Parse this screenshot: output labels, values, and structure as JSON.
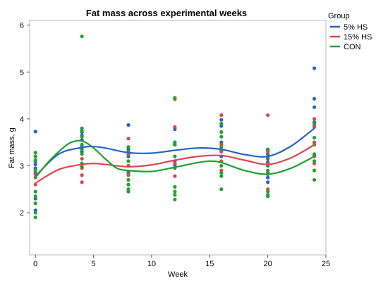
{
  "chart_data": {
    "type": "scatter",
    "title": "Fat mass across experimental weeks",
    "xlabel": "Week",
    "ylabel": "Fat mass, g",
    "xlim": [
      -0.5,
      25
    ],
    "ylim": [
      1.1,
      6.1
    ],
    "x_ticks": [
      0,
      5,
      10,
      15,
      20,
      25
    ],
    "y_ticks": [
      2,
      3,
      4,
      5,
      6
    ],
    "grid": false,
    "legend": {
      "title": "Group",
      "position": "right"
    },
    "series": [
      {
        "name": "5% HS",
        "color": "#2563c7",
        "points": [
          [
            0,
            3.73
          ],
          [
            0,
            3.1
          ],
          [
            0,
            3.03
          ],
          [
            0,
            2.95
          ],
          [
            0,
            2.85
          ],
          [
            0,
            2.3
          ],
          [
            0,
            2.05
          ],
          [
            4,
            3.72
          ],
          [
            4,
            3.65
          ],
          [
            4,
            3.55
          ],
          [
            4,
            3.4
          ],
          [
            4,
            3.3
          ],
          [
            8,
            3.87
          ],
          [
            8,
            3.35
          ],
          [
            8,
            3.2
          ],
          [
            8,
            3.0
          ],
          [
            8,
            2.85
          ],
          [
            12,
            3.78
          ],
          [
            12,
            3.5
          ],
          [
            12,
            3.45
          ],
          [
            12,
            3.1
          ],
          [
            12,
            3.02
          ],
          [
            16,
            3.98
          ],
          [
            16,
            3.85
          ],
          [
            16,
            3.5
          ],
          [
            16,
            3.33
          ],
          [
            16,
            3.2
          ],
          [
            20,
            3.33
          ],
          [
            20,
            3.25
          ],
          [
            20,
            3.15
          ],
          [
            20,
            3.08
          ],
          [
            20,
            2.75
          ],
          [
            20,
            2.65
          ],
          [
            24,
            5.08
          ],
          [
            24,
            4.43
          ],
          [
            24,
            4.25
          ],
          [
            24,
            3.93
          ],
          [
            24,
            3.85
          ],
          [
            24,
            3.5
          ],
          [
            24,
            3.22
          ]
        ],
        "smoother": [
          [
            0,
            2.78
          ],
          [
            2,
            3.25
          ],
          [
            4,
            3.39
          ],
          [
            5,
            3.41
          ],
          [
            6,
            3.38
          ],
          [
            8,
            3.28
          ],
          [
            10,
            3.27
          ],
          [
            12,
            3.33
          ],
          [
            14,
            3.38
          ],
          [
            16,
            3.35
          ],
          [
            18,
            3.24
          ],
          [
            20,
            3.2
          ],
          [
            22,
            3.42
          ],
          [
            24,
            3.8
          ]
        ]
      },
      {
        "name": "15% HS",
        "color": "#e0454d",
        "points": [
          [
            0,
            2.82
          ],
          [
            0,
            2.75
          ],
          [
            0,
            2.6
          ],
          [
            4,
            3.15
          ],
          [
            4,
            2.95
          ],
          [
            4,
            2.8
          ],
          [
            4,
            2.65
          ],
          [
            8,
            3.58
          ],
          [
            8,
            3.4
          ],
          [
            8,
            3.25
          ],
          [
            8,
            3.0
          ],
          [
            8,
            2.8
          ],
          [
            12,
            4.42
          ],
          [
            12,
            3.83
          ],
          [
            12,
            3.45
          ],
          [
            12,
            3.05
          ],
          [
            12,
            2.78
          ],
          [
            16,
            4.08
          ],
          [
            16,
            3.45
          ],
          [
            16,
            3.3
          ],
          [
            16,
            3.1
          ],
          [
            16,
            2.9
          ],
          [
            20,
            4.08
          ],
          [
            20,
            3.3
          ],
          [
            20,
            3.05
          ],
          [
            20,
            2.85
          ],
          [
            20,
            2.5
          ],
          [
            24,
            4.0
          ],
          [
            24,
            3.83
          ],
          [
            24,
            3.5
          ],
          [
            24,
            3.2
          ],
          [
            24,
            3.05
          ]
        ],
        "smoother": [
          [
            0,
            2.63
          ],
          [
            2,
            2.92
          ],
          [
            4,
            3.03
          ],
          [
            5,
            3.05
          ],
          [
            6,
            3.03
          ],
          [
            8,
            2.98
          ],
          [
            10,
            3.02
          ],
          [
            12,
            3.12
          ],
          [
            14,
            3.2
          ],
          [
            16,
            3.22
          ],
          [
            18,
            3.12
          ],
          [
            20,
            3.03
          ],
          [
            22,
            3.17
          ],
          [
            24,
            3.45
          ]
        ]
      },
      {
        "name": "CON",
        "color": "#23a12f",
        "points": [
          [
            0,
            3.28
          ],
          [
            0,
            3.2
          ],
          [
            0,
            3.12
          ],
          [
            0,
            2.9
          ],
          [
            0,
            2.45
          ],
          [
            0,
            2.35
          ],
          [
            0,
            2.2
          ],
          [
            0,
            2.0
          ],
          [
            0,
            1.9
          ],
          [
            4,
            5.76
          ],
          [
            4,
            3.8
          ],
          [
            4,
            3.75
          ],
          [
            4,
            3.62
          ],
          [
            4,
            3.45
          ],
          [
            4,
            3.35
          ],
          [
            4,
            3.25
          ],
          [
            4,
            3.05
          ],
          [
            4,
            2.98
          ],
          [
            8,
            3.4
          ],
          [
            8,
            3.3
          ],
          [
            8,
            3.1
          ],
          [
            8,
            2.88
          ],
          [
            8,
            2.7
          ],
          [
            8,
            2.6
          ],
          [
            8,
            2.5
          ],
          [
            8,
            2.45
          ],
          [
            12,
            4.45
          ],
          [
            12,
            3.5
          ],
          [
            12,
            3.45
          ],
          [
            12,
            3.2
          ],
          [
            12,
            2.95
          ],
          [
            12,
            2.55
          ],
          [
            12,
            2.45
          ],
          [
            12,
            2.38
          ],
          [
            12,
            2.28
          ],
          [
            16,
            3.9
          ],
          [
            16,
            3.72
          ],
          [
            16,
            3.62
          ],
          [
            16,
            3.4
          ],
          [
            16,
            3.0
          ],
          [
            16,
            2.85
          ],
          [
            16,
            2.78
          ],
          [
            16,
            2.5
          ],
          [
            20,
            3.35
          ],
          [
            20,
            3.18
          ],
          [
            20,
            3.0
          ],
          [
            20,
            2.9
          ],
          [
            20,
            2.82
          ],
          [
            20,
            2.45
          ],
          [
            20,
            2.38
          ],
          [
            20,
            2.35
          ],
          [
            24,
            3.9
          ],
          [
            24,
            3.6
          ],
          [
            24,
            3.45
          ],
          [
            24,
            3.25
          ],
          [
            24,
            3.1
          ],
          [
            24,
            2.9
          ],
          [
            24,
            2.7
          ]
        ],
        "smoother": [
          [
            0,
            2.75
          ],
          [
            1,
            3.05
          ],
          [
            2,
            3.3
          ],
          [
            3,
            3.49
          ],
          [
            4,
            3.53
          ],
          [
            5,
            3.38
          ],
          [
            6,
            3.15
          ],
          [
            7,
            2.95
          ],
          [
            8,
            2.9
          ],
          [
            10,
            2.88
          ],
          [
            12,
            2.97
          ],
          [
            14,
            3.07
          ],
          [
            15,
            3.1
          ],
          [
            16,
            3.07
          ],
          [
            18,
            2.9
          ],
          [
            20,
            2.82
          ],
          [
            22,
            2.95
          ],
          [
            24,
            3.2
          ]
        ]
      }
    ]
  }
}
